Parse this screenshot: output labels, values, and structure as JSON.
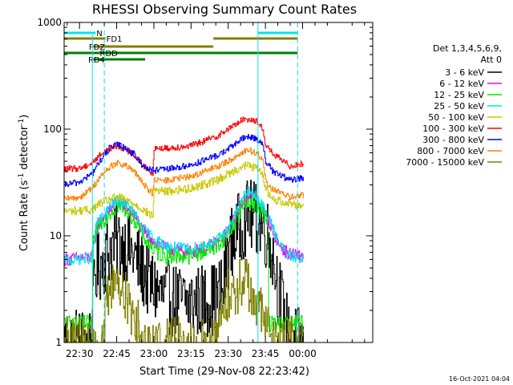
{
  "chart_data": {
    "type": "line",
    "title": "RHESSI Observing Summary Count Rates",
    "xlabel": "Start Time (29-Nov-08 22:23:42)",
    "ylabel": "Count Rate (s",
    "ylabel_sup": "-1",
    "ylabel_mid": " detector",
    "ylabel_end": ")",
    "y_scale": "log",
    "ylim": [
      1,
      1000
    ],
    "xlim": [
      -6.2,
      118.3
    ],
    "x_ticks": [
      {
        "t": 0,
        "label": "22:30"
      },
      {
        "t": 15,
        "label": "22:45"
      },
      {
        "t": 30,
        "label": "23:00"
      },
      {
        "t": 45,
        "label": "23:15"
      },
      {
        "t": 60,
        "label": "23:30"
      },
      {
        "t": 75,
        "label": "23:45"
      },
      {
        "t": 90,
        "label": "00:00"
      }
    ],
    "y_ticks": [
      {
        "v": 1,
        "label": "1"
      },
      {
        "v": 10,
        "label": "10"
      },
      {
        "v": 100,
        "label": "100"
      },
      {
        "v": 1000,
        "label": "1000"
      }
    ],
    "footer_date": "16-Oct-2021 04:04",
    "legend_header": [
      "Det 1,3,4,5,6,9,",
      "Att 0"
    ],
    "series": [
      {
        "name": "3 - 6 keV",
        "color": "#000000",
        "x": [
          -6.2,
          5,
          6,
          8,
          12,
          15,
          18,
          22,
          25,
          28,
          30,
          33,
          38,
          45,
          55,
          58,
          59.5,
          62,
          66,
          68,
          71,
          74,
          77,
          80,
          83,
          85
        ],
        "y": [
          1.0,
          1.0,
          4.5,
          5.2,
          7.5,
          8.8,
          8.2,
          6.5,
          4.8,
          3.6,
          3.3,
          2.8,
          2.5,
          2.4,
          2.6,
          3.2,
          6.5,
          9.5,
          13.5,
          15.5,
          14.5,
          12.5,
          8.5,
          3.5,
          1.5,
          1.0
        ]
      },
      {
        "name": "6 - 12 keV",
        "color": "#ff00ff",
        "x": [
          -6.2,
          5,
          7,
          12,
          15,
          18,
          22,
          25,
          30,
          35,
          45,
          55,
          60,
          66,
          68,
          71,
          74,
          77,
          80,
          84,
          90
        ],
        "y": [
          6.0,
          6.3,
          12.5,
          17.5,
          20.5,
          19.5,
          15.5,
          11.5,
          9.0,
          7.5,
          7.0,
          8.5,
          11.0,
          21.5,
          24.5,
          22.5,
          17.5,
          12.5,
          8.5,
          6.8,
          6.3
        ]
      },
      {
        "name": "12 - 25 keV",
        "color": "#00e600",
        "x": [
          -6.2,
          5,
          5.5,
          7,
          12,
          15,
          18,
          22,
          25,
          30,
          35,
          45,
          55,
          60,
          66,
          68,
          71,
          74,
          76,
          76.2,
          90
        ],
        "y": [
          1.5,
          1.5,
          8.5,
          12.0,
          16.5,
          19.0,
          18.0,
          14.5,
          10.5,
          7.2,
          6.5,
          6.5,
          8.0,
          10.5,
          19.0,
          21.5,
          19.5,
          16.0,
          12.5,
          1.5,
          1.5
        ]
      },
      {
        "name": "25 - 50 keV",
        "color": "#00e6e6",
        "x": [
          -6.2,
          5,
          7,
          12,
          15,
          18,
          22,
          25,
          30,
          35,
          45,
          55,
          60,
          66,
          68,
          71,
          74,
          77,
          80,
          84,
          90
        ],
        "y": [
          5.8,
          6.2,
          13.0,
          18.5,
          21.5,
          20.5,
          16.5,
          12.0,
          9.5,
          8.0,
          7.5,
          9.0,
          11.5,
          23.0,
          26.0,
          24.0,
          18.5,
          13.5,
          9.0,
          6.5,
          6.2
        ]
      },
      {
        "name": "50 - 100 keV",
        "color": "#c8c800",
        "x": [
          -6.2,
          5,
          8,
          12,
          15,
          18,
          22,
          25,
          28,
          29.5,
          30,
          35,
          45,
          55,
          60,
          65,
          68,
          71,
          74,
          75,
          78,
          90
        ],
        "y": [
          17.0,
          17.5,
          20.0,
          22.0,
          23.0,
          22.0,
          20.0,
          18.0,
          16.0,
          15.0,
          27.0,
          26.0,
          28.0,
          33.0,
          38.0,
          44.0,
          46.0,
          43.0,
          38.0,
          27.0,
          22.0,
          19.0
        ]
      },
      {
        "name": "100 - 300 keV",
        "color": "#ff0000",
        "x": [
          -6.2,
          0,
          5,
          8,
          12,
          15,
          18,
          22,
          25,
          28,
          29.5,
          30,
          35,
          45,
          55,
          60,
          65,
          68,
          71,
          74,
          75,
          78,
          85,
          90
        ],
        "y": [
          42.0,
          43.0,
          48.0,
          57.0,
          66.0,
          70.0,
          66.0,
          57.0,
          48.0,
          40.0,
          37.0,
          67.0,
          66.0,
          70.0,
          85.0,
          100.0,
          120.0,
          125.0,
          120.0,
          100.0,
          72.0,
          58.0,
          45.0,
          48.0
        ]
      },
      {
        "name": "300 - 800 keV",
        "color": "#0000ff",
        "x": [
          -6.2,
          0,
          5,
          8,
          12,
          15,
          18,
          22,
          25,
          28,
          30,
          35,
          45,
          55,
          60,
          65,
          68,
          71,
          74,
          75,
          78,
          85,
          90
        ],
        "y": [
          30.0,
          32.0,
          38.0,
          50.0,
          65.0,
          72.0,
          68.0,
          58.0,
          47.0,
          42.0,
          41.0,
          42.0,
          46.0,
          56.0,
          65.0,
          80.0,
          85.0,
          82.0,
          72.0,
          50.0,
          40.0,
          33.0,
          35.0
        ]
      },
      {
        "name": "800 - 7000 keV",
        "color": "#ff8000",
        "x": [
          -6.2,
          0,
          5,
          8,
          12,
          15,
          18,
          22,
          25,
          28,
          29.5,
          30,
          35,
          45,
          55,
          60,
          65,
          68,
          71,
          74,
          75,
          78,
          85,
          90
        ],
        "y": [
          22.0,
          23.0,
          28.0,
          35.0,
          44.0,
          48.0,
          46.0,
          40.0,
          32.0,
          27.0,
          25.0,
          33.0,
          33.0,
          36.0,
          44.0,
          50.0,
          60.0,
          64.0,
          60.0,
          52.0,
          32.0,
          27.0,
          23.0,
          24.0
        ]
      },
      {
        "name": "7000 - 15000 keV",
        "color": "#808000",
        "x": [
          -6.2,
          10,
          10.5,
          12,
          14,
          18,
          20,
          22,
          24,
          25,
          27,
          30,
          40,
          55,
          56,
          58,
          60,
          63,
          66,
          68,
          70,
          73,
          75,
          78,
          90
        ],
        "y": [
          1.0,
          1.0,
          2.0,
          3.0,
          4.0,
          3.0,
          2.0,
          2.0,
          1.3,
          1.0,
          1.0,
          1.0,
          1.0,
          1.0,
          1.5,
          2.0,
          3.0,
          3.0,
          4.0,
          3.5,
          2.5,
          2.0,
          1.5,
          1.0,
          1.0
        ]
      }
    ],
    "flag_bars": [
      {
        "label": "N",
        "color": "#00e6e6",
        "segments": [
          [
            -6.2,
            6.5
          ],
          [
            72,
            88
          ]
        ]
      },
      {
        "label": "FD1",
        "color": "#808000",
        "segments": [
          [
            -6.2,
            10.5
          ],
          [
            54,
            88
          ]
        ]
      },
      {
        "label": "FDZ",
        "color": "#808000",
        "segments": [
          [
            5.5,
            54
          ]
        ]
      },
      {
        "label": "RDD",
        "color": "#008000",
        "segments": [
          [
            -6.2,
            88
          ]
        ]
      },
      {
        "label": "RD4",
        "color": "#008000",
        "segments": [
          [
            5.5,
            26.5
          ]
        ]
      }
    ],
    "dashed_lines": [
      {
        "t": 10,
        "color": "#00e6e6"
      },
      {
        "t": 88,
        "color": "#00e6e6"
      }
    ],
    "solid_vlines": [
      {
        "t": 72,
        "color": "#00e6e6"
      }
    ]
  }
}
